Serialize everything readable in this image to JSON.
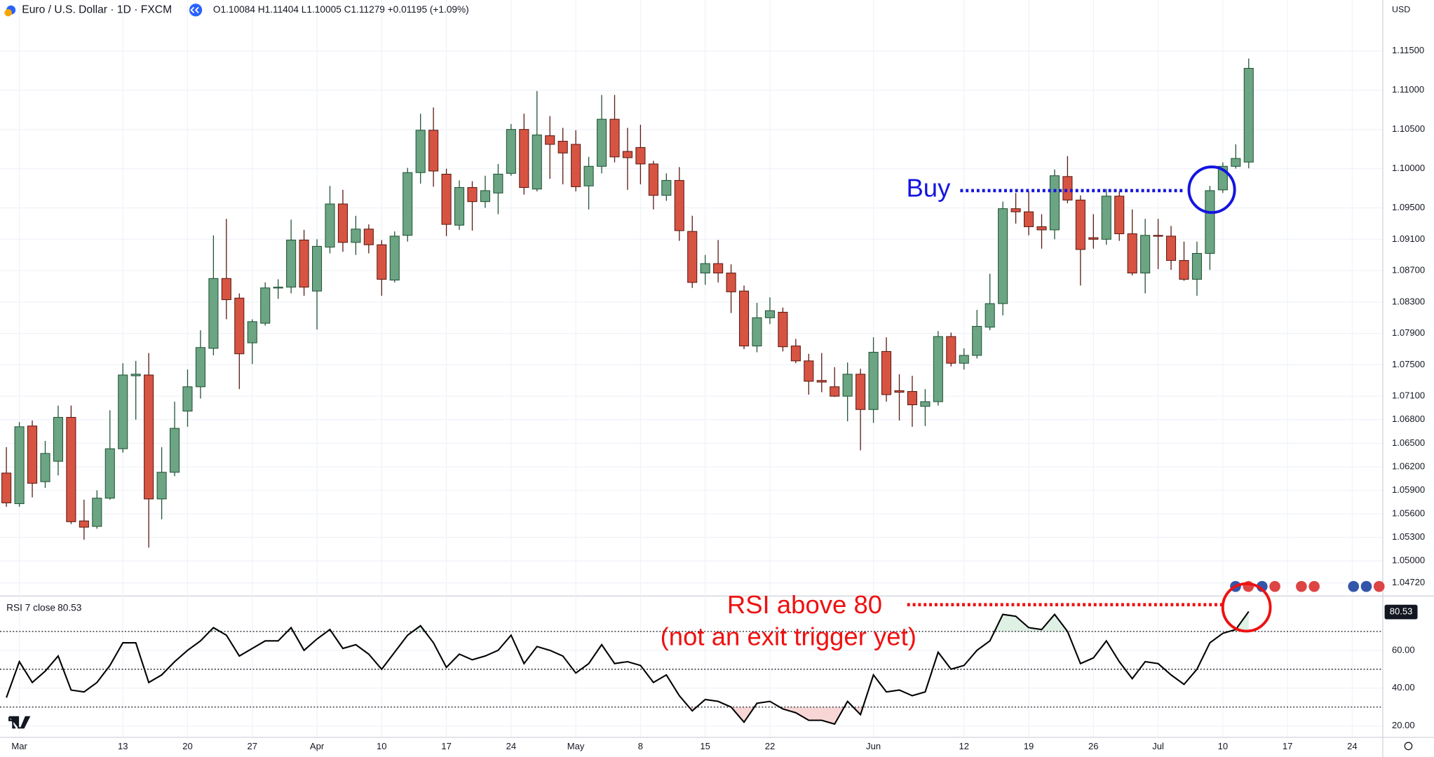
{
  "chart_data": [
    {
      "type": "candlestick",
      "title": "Euro / U.S. Dollar · 1D · FXCM",
      "legend_values": "O1.10084 H1.11404 L1.10005 C1.11279 +0.01195 (+1.09%)",
      "currency": "USD",
      "up_color": "#6ba583",
      "down_color": "#d75442",
      "up_border": "#225437",
      "down_border": "#5b1a13",
      "grid": true,
      "ylim": [
        1.0457,
        1.1215
      ],
      "yticks": [
        {
          "value": 1.115,
          "label": "1.11500"
        },
        {
          "value": 1.11,
          "label": "1.11000"
        },
        {
          "value": 1.105,
          "label": "1.10500"
        },
        {
          "value": 1.1,
          "label": "1.10000"
        },
        {
          "value": 1.095,
          "label": "1.09500"
        },
        {
          "value": 1.091,
          "label": "1.09100"
        },
        {
          "value": 1.087,
          "label": "1.08700"
        },
        {
          "value": 1.083,
          "label": "1.08300"
        },
        {
          "value": 1.079,
          "label": "1.07900"
        },
        {
          "value": 1.075,
          "label": "1.07500"
        },
        {
          "value": 1.071,
          "label": "1.07100"
        },
        {
          "value": 1.068,
          "label": "1.06800"
        },
        {
          "value": 1.065,
          "label": "1.06500"
        },
        {
          "value": 1.062,
          "label": "1.06200"
        },
        {
          "value": 1.059,
          "label": "1.05900"
        },
        {
          "value": 1.056,
          "label": "1.05600"
        },
        {
          "value": 1.053,
          "label": "1.05300"
        },
        {
          "value": 1.05,
          "label": "1.05000"
        },
        {
          "value": 1.0472,
          "label": "1.04720"
        }
      ],
      "categories": [
        null,
        "Mar",
        null,
        null,
        null,
        null,
        null,
        null,
        null,
        "13",
        null,
        null,
        null,
        null,
        "20",
        null,
        null,
        null,
        null,
        "27",
        null,
        null,
        null,
        null,
        "Apr",
        null,
        null,
        null,
        null,
        "10",
        null,
        null,
        null,
        null,
        "17",
        null,
        null,
        null,
        null,
        "24",
        null,
        null,
        null,
        null,
        "May",
        null,
        null,
        null,
        null,
        "8",
        null,
        null,
        null,
        null,
        "15",
        null,
        null,
        null,
        null,
        "22",
        null,
        null,
        null,
        null,
        null,
        null,
        null,
        "Jun",
        null,
        null,
        null,
        null,
        null,
        null,
        "12",
        null,
        null,
        null,
        null,
        "19",
        null,
        null,
        null,
        null,
        "26",
        null,
        null,
        null,
        null,
        "Jul",
        null,
        null,
        null,
        null,
        "10",
        null,
        null,
        null,
        null,
        "17",
        null,
        null,
        null,
        null,
        "24"
      ],
      "open": [
        1.0612,
        1.0573,
        1.0672,
        1.0601,
        1.0627,
        1.0683,
        1.0551,
        1.0544,
        1.058,
        1.0643,
        1.0736,
        1.0737,
        1.0579,
        1.0613,
        1.0691,
        1.0722,
        1.0771,
        1.086,
        1.0835,
        1.0778,
        1.0803,
        1.0848,
        1.0849,
        1.0909,
        1.0844,
        1.09,
        1.0955,
        1.0906,
        1.0923,
        1.0903,
        1.0858,
        1.0915,
        1.0995,
        1.1049,
        1.0993,
        1.0928,
        1.0976,
        1.0958,
        1.0969,
        1.0994,
        1.105,
        1.0974,
        1.1042,
        1.1035,
        1.1031,
        1.0978,
        1.1003,
        1.1063,
        1.1022,
        1.1027,
        1.1006,
        1.0966,
        1.0985,
        1.092,
        1.0867,
        1.0879,
        1.0867,
        1.0844,
        1.0774,
        1.081,
        1.0817,
        1.0774,
        1.0755,
        1.073,
        1.0722,
        1.071,
        1.0738,
        1.0693,
        1.0767,
        1.0717,
        1.0716,
        1.0697,
        1.0703,
        1.0786,
        1.0752,
        1.0762,
        1.0798,
        1.0828,
        1.0949,
        1.0945,
        1.0926,
        1.0922,
        1.099,
        1.096,
        1.0912,
        1.091,
        1.0965,
        1.0917,
        1.0867,
        1.0915,
        1.0914,
        1.0883,
        1.0859,
        1.0892,
        1.0973,
        1.1003,
        1.10084,
        null,
        null,
        null,
        null,
        null,
        null,
        null,
        null
      ],
      "high": [
        1.0645,
        1.0677,
        1.0679,
        1.0653,
        1.0698,
        1.0698,
        1.0578,
        1.059,
        1.0692,
        1.0752,
        1.0755,
        1.0765,
        1.0645,
        1.0703,
        1.0744,
        1.0794,
        1.0915,
        1.0936,
        1.0841,
        1.0808,
        1.0855,
        1.0859,
        1.0935,
        1.0922,
        1.091,
        1.0978,
        1.0973,
        1.094,
        1.0929,
        1.0909,
        1.092,
        1.1001,
        1.107,
        1.1078,
        1.1,
        1.0985,
        1.0984,
        1.0991,
        1.1006,
        1.1057,
        1.107,
        1.1099,
        1.1067,
        1.1052,
        1.1049,
        1.1015,
        1.1094,
        1.1094,
        1.1052,
        1.1056,
        1.101,
        1.0994,
        1.1002,
        1.094,
        1.089,
        1.0909,
        1.0878,
        1.0851,
        1.0829,
        1.0836,
        1.0823,
        1.0783,
        1.0764,
        1.0765,
        1.0747,
        1.0753,
        1.0745,
        1.0785,
        1.0785,
        1.0738,
        1.0736,
        1.0719,
        1.0793,
        1.0791,
        1.0771,
        1.082,
        1.0866,
        1.0958,
        1.0969,
        1.0971,
        1.0942,
        1.0999,
        1.1016,
        1.0966,
        1.0942,
        1.0974,
        1.0971,
        1.0948,
        1.0936,
        1.0936,
        1.0927,
        1.0907,
        1.0907,
        1.0978,
        1.1008,
        1.1031,
        1.11404,
        null,
        null,
        null,
        null,
        null,
        null,
        null,
        null
      ],
      "low": [
        1.0569,
        1.0569,
        1.0581,
        1.0593,
        1.0609,
        1.0547,
        1.0527,
        1.0541,
        1.0578,
        1.0638,
        1.068,
        1.0517,
        1.0553,
        1.0608,
        1.0671,
        1.0707,
        1.0762,
        1.0808,
        1.0719,
        1.0751,
        1.08,
        1.0834,
        1.0841,
        1.0838,
        1.0795,
        1.0892,
        1.0894,
        1.089,
        1.0892,
        1.0838,
        1.0855,
        1.0907,
        1.0981,
        1.0977,
        1.0914,
        1.0922,
        1.0921,
        1.095,
        1.0942,
        1.0991,
        1.0967,
        1.0971,
        1.0987,
        1.098,
        1.0971,
        1.0948,
        1.0994,
        1.1008,
        1.0973,
        1.098,
        1.0948,
        1.0959,
        1.0908,
        1.0848,
        1.0852,
        1.0855,
        1.0816,
        1.077,
        1.0766,
        1.0802,
        1.0767,
        1.0752,
        1.0712,
        1.0715,
        1.0709,
        1.0678,
        1.0641,
        1.0676,
        1.0703,
        1.0679,
        1.0671,
        1.0672,
        1.0698,
        1.0748,
        1.0744,
        1.0758,
        1.0794,
        1.0813,
        1.093,
        1.0915,
        1.0898,
        1.091,
        1.0956,
        1.0851,
        1.0898,
        1.0903,
        1.0908,
        1.0864,
        1.0841,
        1.0872,
        1.0871,
        1.0857,
        1.0838,
        1.0871,
        1.0969,
        1.1,
        1.10005,
        null,
        null,
        null,
        null,
        null,
        null,
        null,
        null
      ],
      "close": [
        1.0574,
        1.0671,
        1.0599,
        1.0637,
        1.0683,
        1.055,
        1.0543,
        1.058,
        1.0643,
        1.0737,
        1.0738,
        1.0579,
        1.0613,
        1.0669,
        1.0722,
        1.0772,
        1.086,
        1.0833,
        1.0764,
        1.0805,
        1.0848,
        1.0849,
        1.0909,
        1.0849,
        1.0901,
        1.0955,
        1.0906,
        1.0923,
        1.0903,
        1.0859,
        1.0914,
        1.0995,
        1.1049,
        1.0997,
        1.0929,
        1.0976,
        1.0958,
        1.0972,
        1.0993,
        1.105,
        1.0976,
        1.1043,
        1.1031,
        1.102,
        1.0977,
        1.1003,
        1.1063,
        1.1015,
        1.1014,
        1.1006,
        1.0966,
        1.0985,
        1.0921,
        1.0855,
        1.0879,
        1.0867,
        1.0843,
        1.0774,
        1.081,
        1.0819,
        1.0773,
        1.0755,
        1.0729,
        1.0728,
        1.071,
        1.0738,
        1.0693,
        1.0766,
        1.0712,
        1.0715,
        1.0699,
        1.0703,
        1.0786,
        1.0752,
        1.0762,
        1.0799,
        1.0828,
        1.0949,
        1.0945,
        1.0926,
        1.0922,
        1.0991,
        1.096,
        1.0897,
        1.091,
        1.0965,
        1.0917,
        1.0867,
        1.0915,
        1.0914,
        1.0883,
        1.0859,
        1.0892,
        1.0972,
        1.1003,
        1.1013,
        1.11279,
        null,
        null,
        null,
        null,
        null,
        null,
        null,
        null
      ],
      "annotations": [
        {
          "text": "Buy",
          "color": "#1414e0"
        }
      ]
    },
    {
      "type": "line",
      "title": "RSI 7 close",
      "color": "#000000",
      "overbought_color": "#dff0e4",
      "oversold_color": "#f8d6d6",
      "ylim": [
        14.2,
        88
      ],
      "yticks": [
        {
          "value": 20,
          "label": "20.00"
        },
        {
          "value": 40,
          "label": "40.00"
        },
        {
          "value": 60,
          "label": "60.00"
        }
      ],
      "levels": [
        70,
        50,
        30
      ],
      "values": [
        35,
        54,
        43,
        49,
        57,
        39,
        38,
        43,
        52,
        64,
        64,
        43,
        47,
        54,
        60,
        65,
        72,
        68,
        57,
        61,
        65,
        65,
        72,
        60,
        66,
        71,
        61,
        63,
        58,
        50,
        59,
        68,
        73,
        64,
        51,
        58,
        55,
        57,
        60,
        68,
        53,
        62,
        60,
        57,
        48,
        53,
        63,
        53,
        54,
        52,
        43,
        47,
        36,
        28,
        34,
        33,
        30,
        22,
        32,
        33,
        29,
        27,
        23,
        23,
        21,
        33,
        26,
        47,
        38,
        39,
        36,
        38,
        59,
        50,
        52,
        60,
        65,
        79,
        78,
        72,
        71,
        79,
        70,
        53,
        56,
        65,
        54,
        45,
        54,
        53,
        47,
        42,
        50,
        64,
        69,
        71,
        80.53,
        null,
        null,
        null,
        null,
        null,
        null,
        null,
        null
      ],
      "annotations": [
        {
          "text": "RSI above 80",
          "color": "#ee1111"
        },
        {
          "text": "(not an exit trigger yet)",
          "color": "#ee1111"
        }
      ]
    }
  ]
}
